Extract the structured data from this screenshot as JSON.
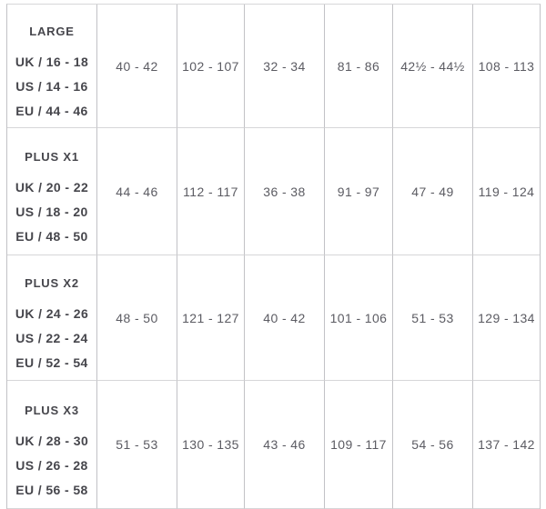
{
  "colors": {
    "background": "#ffffff",
    "label_text": "#46464c",
    "value_text": "#5b5b62",
    "vertical_border": "#c2c2c6",
    "horizontal_border": "#d6d6d8"
  },
  "chart_data": {
    "type": "table",
    "description": "Clothing size conversion chart fragment; header row cropped out of view at top, last row cropped at bottom",
    "rows": [
      {
        "size_name": "LARGE",
        "size_lines": [
          "UK / 16 - 18",
          "US / 14 - 16",
          "EU / 44 - 46"
        ],
        "values": [
          "40 - 42",
          "102 - 107",
          "32 - 34",
          "81 - 86",
          "42½ - 44½",
          "108 - 113"
        ]
      },
      {
        "size_name": "PLUS X1",
        "size_lines": [
          "UK / 20 - 22",
          "US / 18 - 20",
          "EU / 48 - 50"
        ],
        "values": [
          "44 - 46",
          "112 - 117",
          "36 - 38",
          "91 - 97",
          "47 - 49",
          "119 - 124"
        ]
      },
      {
        "size_name": "PLUS X2",
        "size_lines": [
          "UK / 24 - 26",
          "US / 22 - 24",
          "EU / 52 - 54"
        ],
        "values": [
          "48 - 50",
          "121 - 127",
          "40 - 42",
          "101 - 106",
          "51 - 53",
          "129 - 134"
        ]
      },
      {
        "size_name": "PLUS X3",
        "size_lines": [
          "UK / 28 - 30",
          "US / 26 - 28",
          "EU / 56 - 58"
        ],
        "values": [
          "51 - 53",
          "130 - 135",
          "43 - 46",
          "109 - 117",
          "54 - 56",
          "137 - 142"
        ]
      }
    ]
  }
}
